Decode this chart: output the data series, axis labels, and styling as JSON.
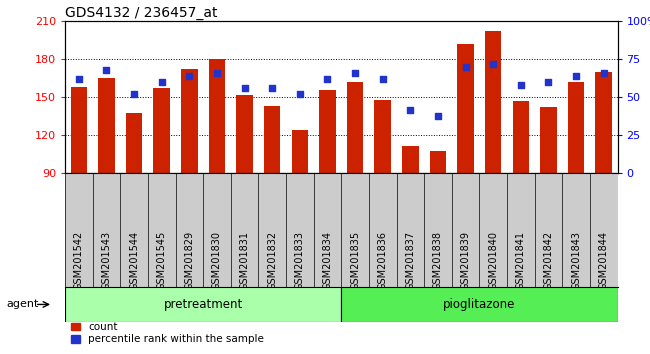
{
  "title": "GDS4132 / 236457_at",
  "samples": [
    "GSM201542",
    "GSM201543",
    "GSM201544",
    "GSM201545",
    "GSM201829",
    "GSM201830",
    "GSM201831",
    "GSM201832",
    "GSM201833",
    "GSM201834",
    "GSM201835",
    "GSM201836",
    "GSM201837",
    "GSM201838",
    "GSM201839",
    "GSM201840",
    "GSM201841",
    "GSM201842",
    "GSM201843",
    "GSM201844"
  ],
  "counts": [
    158,
    165,
    138,
    157,
    172,
    180,
    152,
    143,
    124,
    156,
    162,
    148,
    112,
    108,
    192,
    202,
    147,
    142,
    162,
    170
  ],
  "percentiles": [
    62,
    68,
    52,
    60,
    64,
    66,
    56,
    56,
    52,
    62,
    66,
    62,
    42,
    38,
    70,
    72,
    58,
    60,
    64,
    66
  ],
  "pretreatment_count": 10,
  "ylim_left": [
    90,
    210
  ],
  "ylim_right": [
    0,
    100
  ],
  "yticks_left": [
    90,
    120,
    150,
    180,
    210
  ],
  "yticks_right": [
    0,
    25,
    50,
    75,
    100
  ],
  "bar_color": "#cc2200",
  "dot_color": "#2233cc",
  "pretreatment_color": "#aaffaa",
  "pioglitazone_color": "#55ee55",
  "agent_label": "agent",
  "pretreatment_label": "pretreatment",
  "pioglitazone_label": "pioglitazone",
  "legend_count": "count",
  "legend_percentile": "percentile rank within the sample",
  "plot_bg": "#ffffff",
  "cell_bg": "#cccccc",
  "title_fontsize": 10,
  "tick_fontsize": 7
}
